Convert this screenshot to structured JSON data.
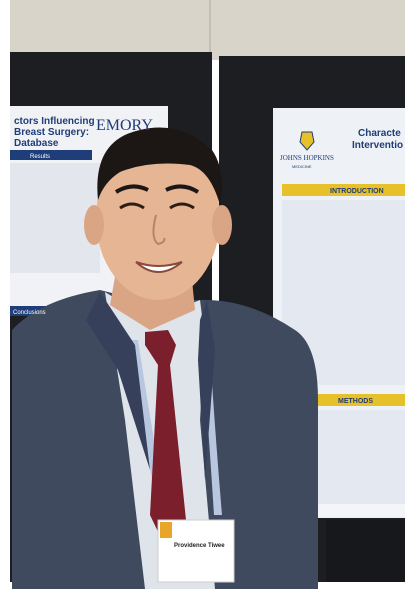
{
  "left_poster": {
    "title_lines": [
      "ctors Influencing",
      "Breast Surgery:",
      "Database"
    ],
    "logo_text": "EMORY",
    "section_heading": "Results",
    "footer_heading": "Conclusions"
  },
  "right_poster": {
    "title_lines": [
      "Characte",
      "Interventio"
    ],
    "logo_text": "JOHNS HOPKINS",
    "logo_subtext": "MEDICINE",
    "section_introduction": "INTRODUCTION",
    "section_methods": "METHODS"
  },
  "badge": {
    "name": "Providence Tiwee"
  },
  "colors": {
    "poster_banner_gold": "#e7c12a",
    "poster_banner_blue": "#1f3d78",
    "suit": "#3f4a5e",
    "tie": "#7a1f2b",
    "wall": "#d9d6cc"
  }
}
